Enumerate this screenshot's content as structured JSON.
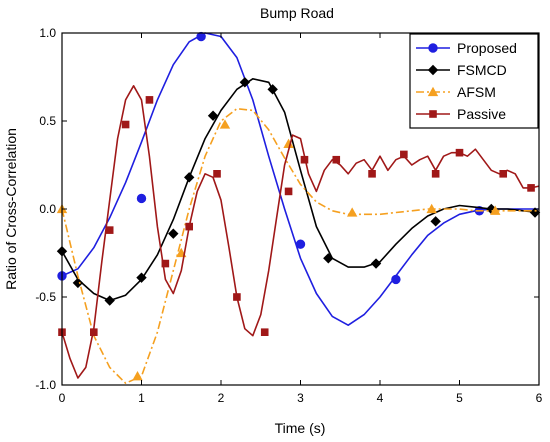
{
  "chart_data": {
    "type": "line",
    "title": "Bump Road",
    "xlabel": "Time (s)",
    "ylabel": "Ratio of Cross-Correlation",
    "xlim": [
      0,
      6
    ],
    "ylim": [
      -1.0,
      1.0
    ],
    "xticks": [
      0,
      1,
      2,
      3,
      4,
      5,
      6
    ],
    "xtick_labels": [
      "0",
      "1",
      "2",
      "3",
      "4",
      "5",
      "6"
    ],
    "yticks": [
      -1.0,
      -0.5,
      0.0,
      0.5,
      1.0
    ],
    "ytick_labels": [
      "-1.0",
      "-0.5",
      "0.0",
      "0.5",
      "1.0"
    ],
    "grid": false,
    "legend_position": "top-right",
    "series": [
      {
        "name": "Proposed",
        "color": "#1f1fe0",
        "dash": "solid",
        "marker": "circle",
        "x": [
          0,
          0.2,
          0.4,
          0.6,
          0.8,
          1.0,
          1.2,
          1.4,
          1.6,
          1.8,
          2.0,
          2.2,
          2.4,
          2.6,
          2.8,
          3.0,
          3.2,
          3.4,
          3.6,
          3.8,
          4.0,
          4.2,
          4.4,
          4.6,
          4.8,
          5.0,
          5.2,
          5.4,
          5.6,
          5.8,
          6.0
        ],
        "y": [
          -0.38,
          -0.34,
          -0.22,
          -0.05,
          0.15,
          0.38,
          0.62,
          0.82,
          0.95,
          1.0,
          0.98,
          0.86,
          0.62,
          0.3,
          0.0,
          -0.28,
          -0.48,
          -0.61,
          -0.66,
          -0.6,
          -0.5,
          -0.38,
          -0.26,
          -0.15,
          -0.08,
          -0.03,
          -0.01,
          0.0,
          0.0,
          0.0,
          0.0
        ],
        "marker_x": [
          0.0,
          1.0,
          1.75,
          3.0,
          4.2,
          5.25
        ],
        "marker_y": [
          -0.38,
          0.06,
          0.98,
          -0.2,
          -0.4,
          -0.01
        ]
      },
      {
        "name": "FSMCD",
        "color": "#000000",
        "dash": "solid",
        "marker": "diamond",
        "x": [
          0,
          0.2,
          0.4,
          0.6,
          0.8,
          1.0,
          1.2,
          1.4,
          1.6,
          1.8,
          2.0,
          2.2,
          2.4,
          2.6,
          2.8,
          3.0,
          3.2,
          3.4,
          3.6,
          3.8,
          4.0,
          4.2,
          4.4,
          4.6,
          4.8,
          5.0,
          5.2,
          5.4,
          5.6,
          5.8,
          6.0
        ],
        "y": [
          -0.24,
          -0.4,
          -0.48,
          -0.52,
          -0.49,
          -0.4,
          -0.26,
          -0.06,
          0.18,
          0.4,
          0.56,
          0.68,
          0.74,
          0.72,
          0.55,
          0.22,
          -0.1,
          -0.28,
          -0.33,
          -0.33,
          -0.3,
          -0.2,
          -0.11,
          -0.04,
          0.0,
          0.02,
          0.01,
          0.0,
          0.0,
          -0.01,
          -0.02
        ],
        "marker_x": [
          0.0,
          0.2,
          0.6,
          1.0,
          1.4,
          1.6,
          1.9,
          2.3,
          2.65,
          3.35,
          3.95,
          4.7,
          5.4,
          5.95
        ],
        "marker_y": [
          -0.24,
          -0.42,
          -0.52,
          -0.39,
          -0.14,
          0.18,
          0.53,
          0.72,
          0.68,
          -0.28,
          -0.31,
          -0.07,
          0.0,
          -0.02
        ]
      },
      {
        "name": "AFSM",
        "color": "#f5a020",
        "dash": "dashdot",
        "marker": "triangle",
        "x": [
          0,
          0.2,
          0.4,
          0.6,
          0.8,
          1.0,
          1.2,
          1.4,
          1.6,
          1.8,
          2.0,
          2.2,
          2.4,
          2.6,
          2.8,
          3.0,
          3.2,
          3.4,
          3.6,
          3.8,
          4.0,
          4.2,
          4.4,
          4.6,
          4.8,
          5.0,
          5.2,
          5.4,
          5.6,
          5.8,
          6.0
        ],
        "y": [
          0.0,
          -0.38,
          -0.72,
          -0.9,
          -0.99,
          -0.95,
          -0.7,
          -0.35,
          0.0,
          0.3,
          0.5,
          0.57,
          0.56,
          0.45,
          0.29,
          0.14,
          0.04,
          -0.01,
          -0.03,
          -0.03,
          -0.03,
          -0.02,
          -0.01,
          0.0,
          0.0,
          0.0,
          -0.01,
          -0.01,
          -0.01,
          -0.01,
          -0.01
        ],
        "marker_x": [
          0.0,
          0.95,
          1.5,
          2.05,
          2.85,
          3.65,
          4.65,
          5.45
        ],
        "marker_y": [
          0.0,
          -0.95,
          -0.25,
          0.48,
          0.37,
          -0.02,
          0.0,
          -0.01
        ]
      },
      {
        "name": "Passive",
        "color": "#a01818",
        "dash": "solid",
        "marker": "square",
        "x": [
          0,
          0.1,
          0.2,
          0.3,
          0.4,
          0.5,
          0.6,
          0.7,
          0.8,
          0.9,
          1.0,
          1.1,
          1.2,
          1.3,
          1.4,
          1.5,
          1.6,
          1.7,
          1.8,
          1.9,
          2.0,
          2.1,
          2.2,
          2.3,
          2.4,
          2.5,
          2.6,
          2.7,
          2.8,
          2.9,
          3.0,
          3.1,
          3.2,
          3.3,
          3.4,
          3.5,
          3.6,
          3.7,
          3.8,
          3.9,
          4.0,
          4.1,
          4.2,
          4.3,
          4.4,
          4.5,
          4.6,
          4.7,
          4.8,
          4.9,
          5.0,
          5.1,
          5.2,
          5.3,
          5.4,
          5.5,
          5.6,
          5.7,
          5.8,
          5.9,
          6.0
        ],
        "y": [
          -0.7,
          -0.85,
          -0.96,
          -0.9,
          -0.68,
          -0.3,
          0.05,
          0.4,
          0.62,
          0.7,
          0.62,
          0.3,
          -0.1,
          -0.4,
          -0.48,
          -0.35,
          -0.1,
          0.1,
          0.2,
          0.18,
          0.05,
          -0.22,
          -0.5,
          -0.68,
          -0.72,
          -0.6,
          -0.35,
          -0.05,
          0.25,
          0.42,
          0.4,
          0.2,
          0.1,
          0.22,
          0.28,
          0.25,
          0.2,
          0.26,
          0.28,
          0.22,
          0.3,
          0.22,
          0.28,
          0.3,
          0.25,
          0.28,
          0.3,
          0.22,
          0.3,
          0.32,
          0.32,
          0.3,
          0.34,
          0.28,
          0.22,
          0.2,
          0.22,
          0.2,
          0.12,
          0.12,
          0.13
        ],
        "marker_x": [
          0.0,
          0.4,
          0.6,
          0.8,
          1.1,
          1.3,
          1.6,
          1.95,
          2.2,
          2.55,
          2.85,
          3.05,
          3.45,
          3.9,
          4.3,
          4.7,
          5.0,
          5.55,
          5.9
        ],
        "marker_y": [
          -0.7,
          -0.7,
          -0.12,
          0.48,
          0.62,
          -0.31,
          -0.1,
          0.2,
          -0.5,
          -0.7,
          0.1,
          0.28,
          0.28,
          0.2,
          0.31,
          0.2,
          0.32,
          0.2,
          0.12
        ]
      }
    ]
  }
}
